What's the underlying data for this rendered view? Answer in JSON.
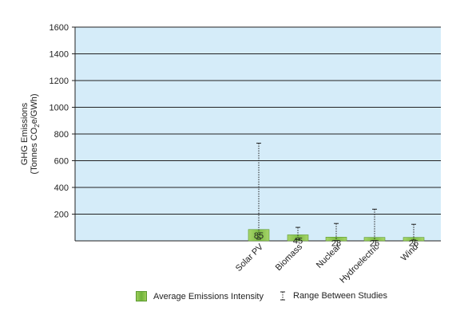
{
  "chart_data": {
    "type": "bar",
    "ylabel_line1": "GHG Emissions",
    "ylabel_line2_prefix": "(Tonnes CO",
    "ylabel_line2_sub": "2",
    "ylabel_line2_suffix": "e/GWh)",
    "ylim": [
      0,
      1600
    ],
    "yticks": [
      200,
      400,
      600,
      800,
      1000,
      1200,
      1400,
      1600
    ],
    "grid": true,
    "categories": [
      "Solar PV",
      "Biomass",
      "Nuclear",
      "Hydroelectric",
      "Wind"
    ],
    "series": [
      {
        "name": "Average Emissions Intensity",
        "values": [
          85,
          45,
          28,
          26,
          26
        ]
      }
    ],
    "ranges": [
      [
        13,
        731
      ],
      [
        10,
        101
      ],
      [
        2,
        130
      ],
      [
        2,
        237
      ],
      [
        6,
        124
      ]
    ],
    "ranges_name": "Range Between Studies",
    "data_labels": [
      "85",
      "45",
      "28",
      "26",
      "26"
    ],
    "colors": {
      "plot_bg": "#d5ecf9",
      "bar": "#7dbd45",
      "bar_edge": "#5c9a30",
      "grid": "#222222"
    }
  },
  "legend": {
    "bar_label": "Average Emissions Intensity",
    "range_label": "Range Between Studies"
  }
}
